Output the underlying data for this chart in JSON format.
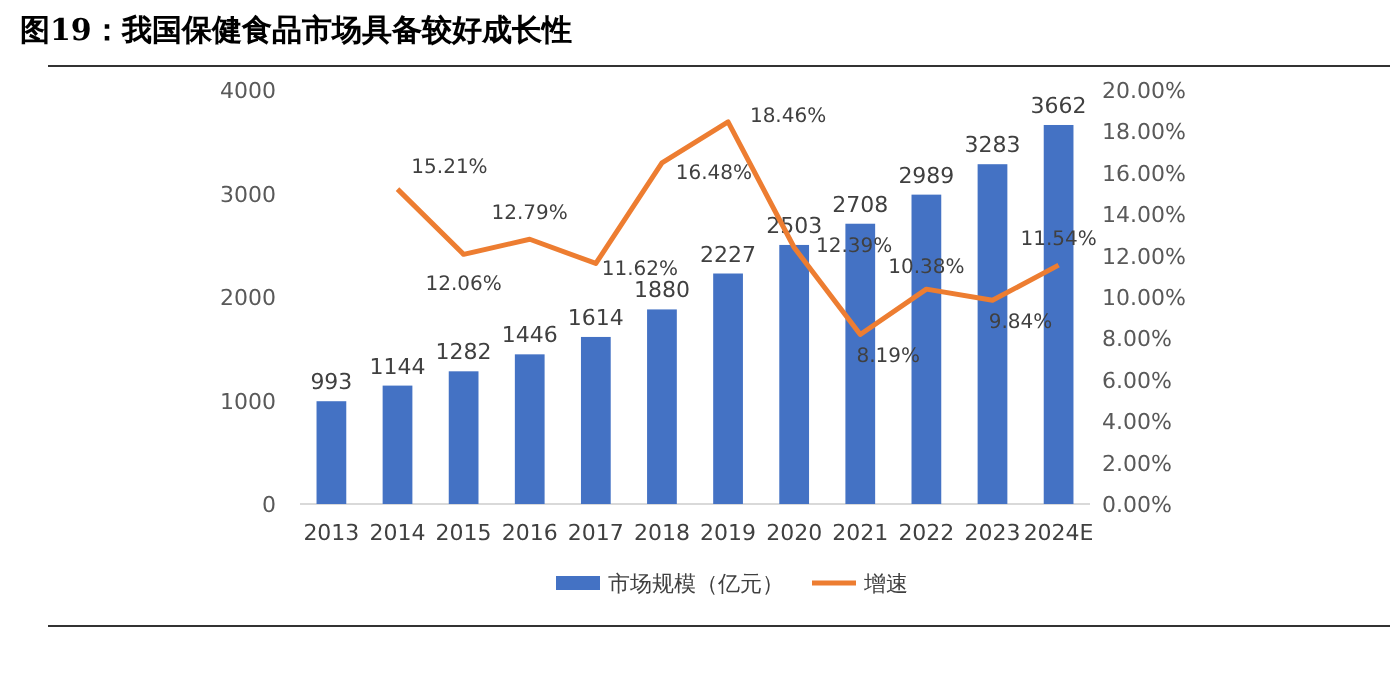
{
  "chart_data": {
    "type": "bar",
    "title": "图19：我国保健食品市场具备较好成长性",
    "categories": [
      "2013",
      "2014",
      "2015",
      "2016",
      "2017",
      "2018",
      "2019",
      "2020",
      "2021",
      "2022",
      "2023",
      "2024E"
    ],
    "series": [
      {
        "name": "市场规模（亿元）",
        "color": "#4472c4",
        "values": [
          993,
          1144,
          1282,
          1446,
          1614,
          1880,
          2227,
          2503,
          2708,
          2989,
          3283,
          3662
        ],
        "value_labels": [
          "993",
          "1144",
          "1282",
          "1446",
          "1614",
          "1880",
          "2227",
          "2503",
          "2708",
          "2989",
          "3283",
          "3662"
        ]
      },
      {
        "name": "增速",
        "type": "line",
        "axis": "y2",
        "color": "#ed7d31",
        "values": [
          null,
          15.21,
          12.06,
          12.79,
          11.62,
          16.48,
          18.46,
          12.39,
          8.19,
          10.38,
          9.84,
          11.54
        ],
        "value_labels": [
          null,
          "15.21%",
          "12.06%",
          "12.79%",
          "11.62%",
          "16.48%",
          "18.46%",
          "12.39%",
          "8.19%",
          "10.38%",
          "9.84%",
          "11.54%"
        ]
      }
    ],
    "ylim": [
      0,
      4000
    ],
    "yticks": [
      0,
      1000,
      2000,
      3000,
      4000
    ],
    "y2lim": [
      0,
      20
    ],
    "y2ticks": [
      {
        "value": 0,
        "label": "0.00%"
      },
      {
        "value": 2,
        "label": "2.00%"
      },
      {
        "value": 4,
        "label": "4.00%"
      },
      {
        "value": 6,
        "label": "6.00%"
      },
      {
        "value": 8,
        "label": "8.00%"
      },
      {
        "value": 10,
        "label": "10.00%"
      },
      {
        "value": 12,
        "label": "12.00%"
      },
      {
        "value": 14,
        "label": "14.00%"
      },
      {
        "value": 16,
        "label": "16.00%"
      },
      {
        "value": 18,
        "label": "18.00%"
      },
      {
        "value": 20,
        "label": "20.00%"
      }
    ],
    "legend": "bottom",
    "grid": false,
    "marker": "none",
    "line_style": "solid"
  }
}
